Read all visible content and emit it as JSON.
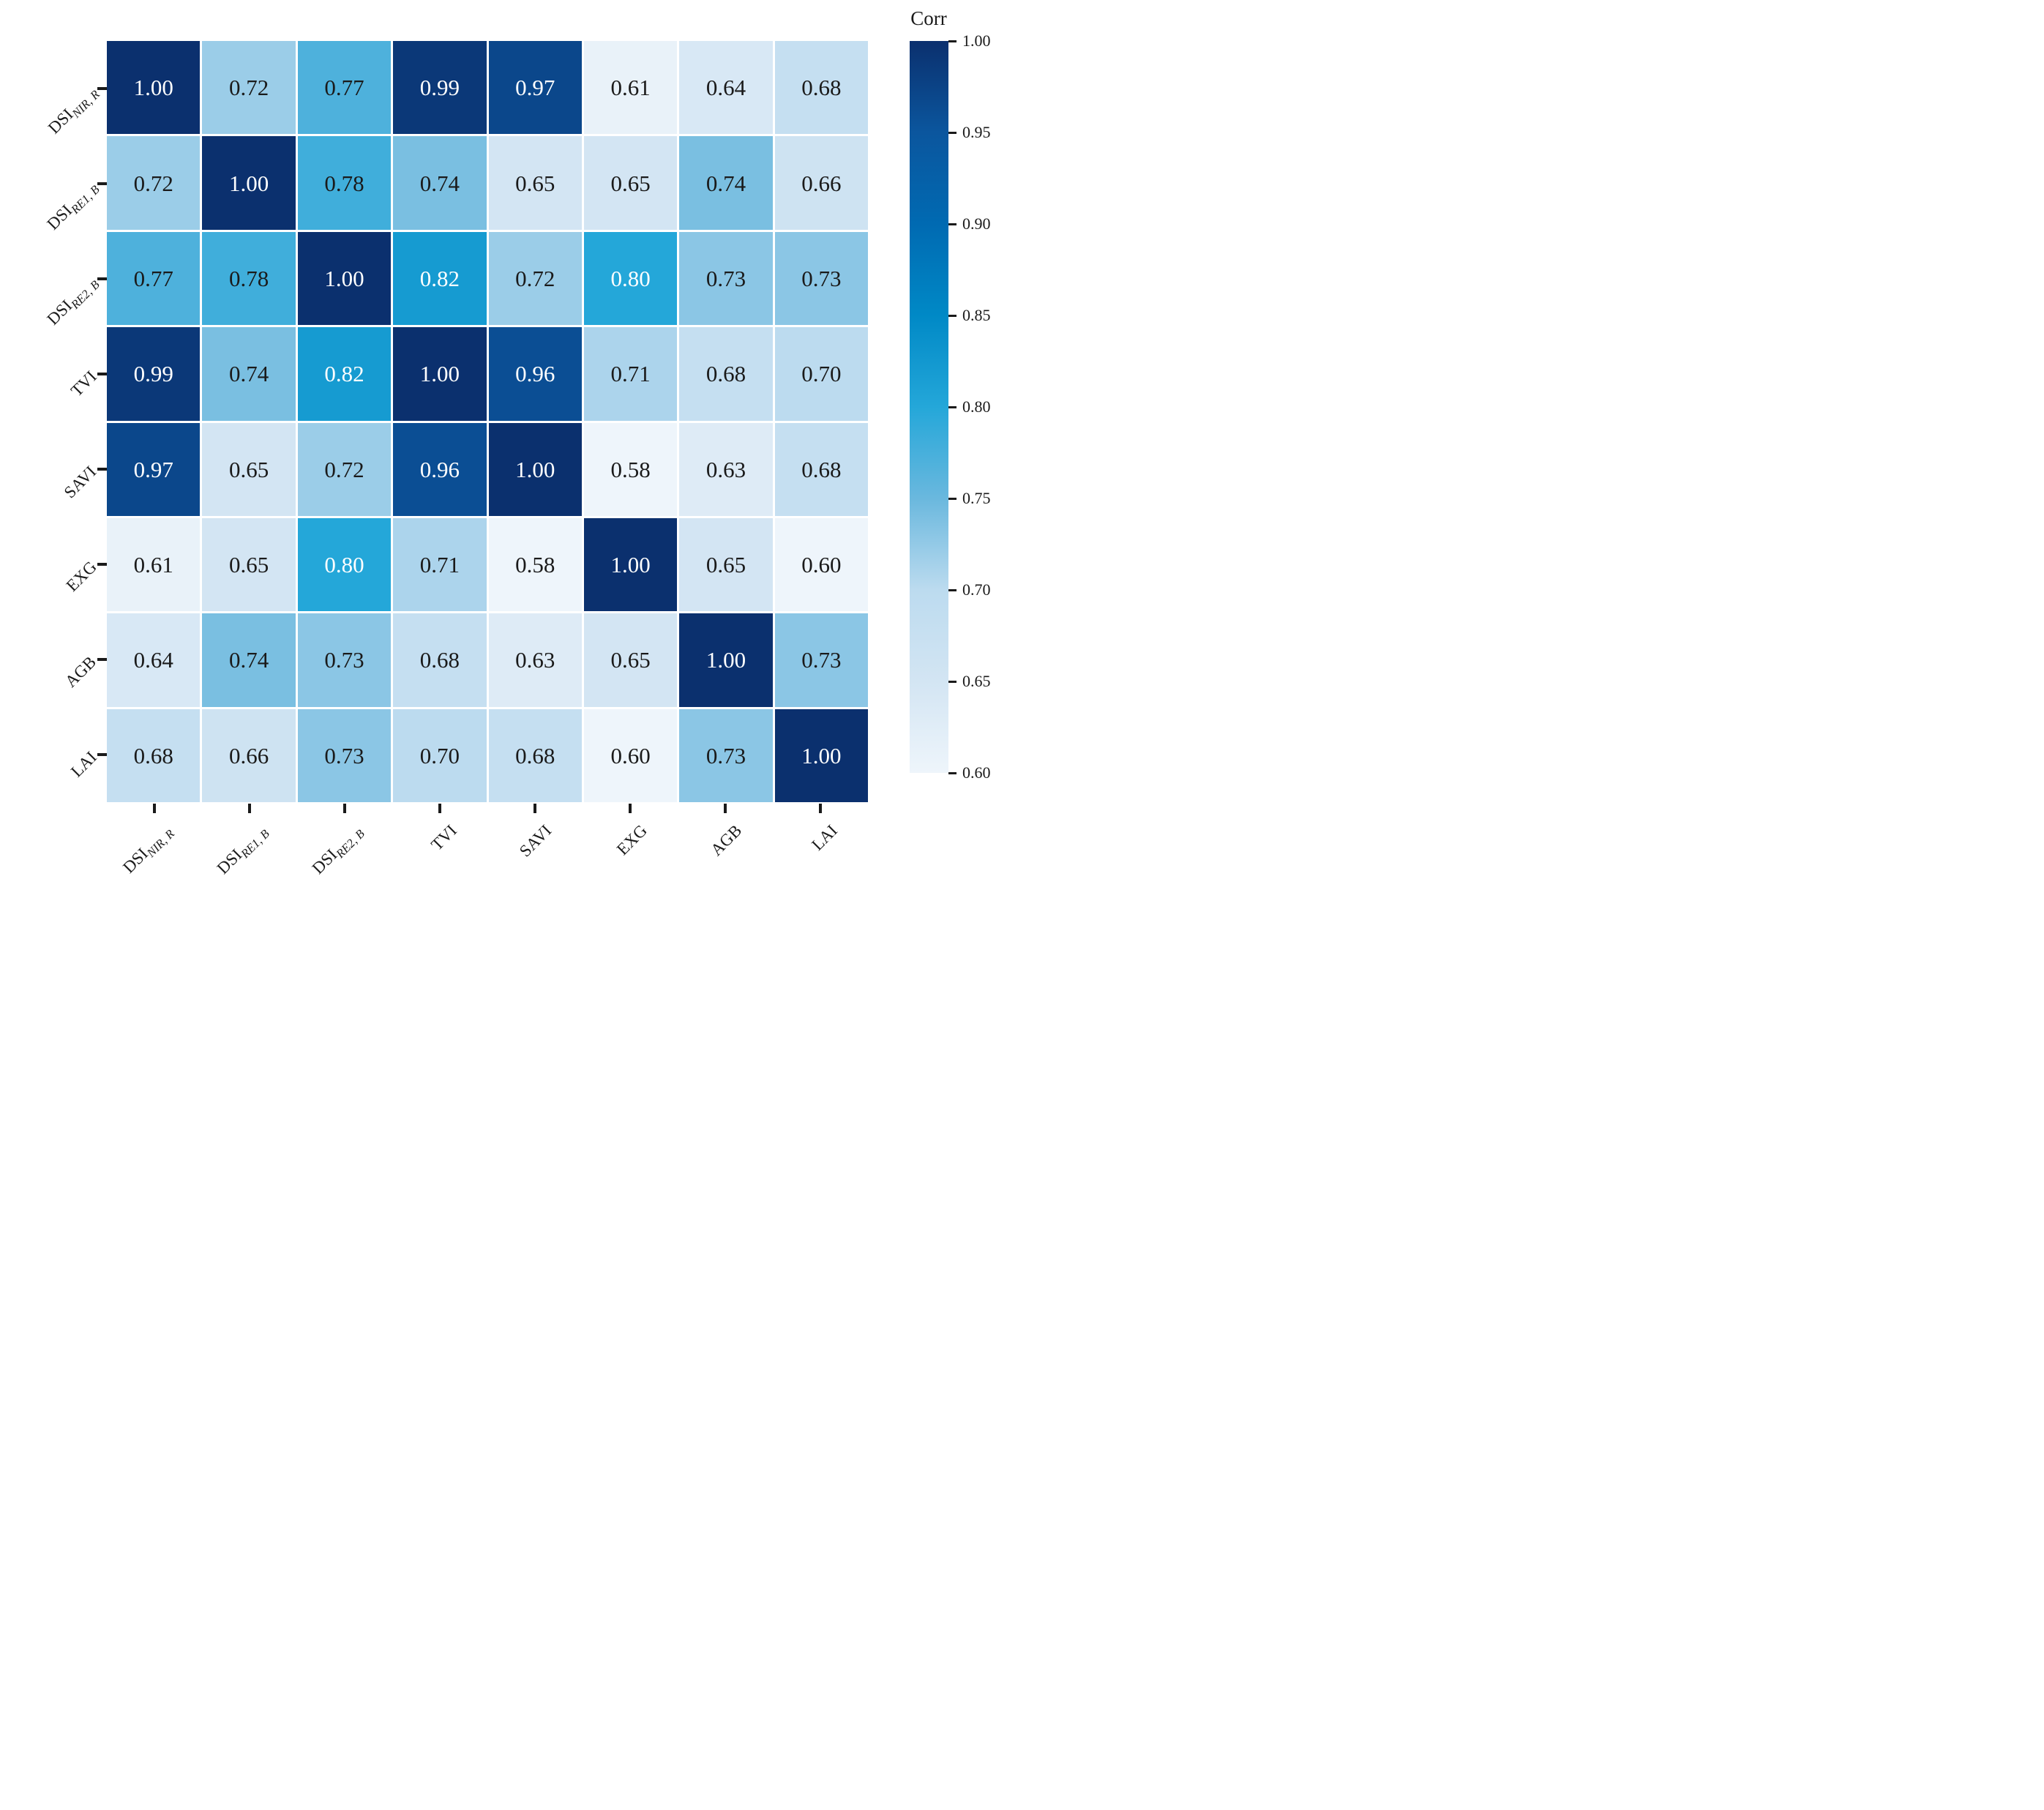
{
  "chart_data": {
    "type": "heatmap",
    "title": "",
    "variables": [
      {
        "base": "DSI",
        "sub": "NIR, R"
      },
      {
        "base": "DSI",
        "sub": "RE1, B"
      },
      {
        "base": "DSI",
        "sub": "RE2, B"
      },
      {
        "base": "TVI",
        "sub": ""
      },
      {
        "base": "SAVI",
        "sub": ""
      },
      {
        "base": "EXG",
        "sub": ""
      },
      {
        "base": "AGB",
        "sub": ""
      },
      {
        "base": "LAI",
        "sub": ""
      }
    ],
    "matrix": [
      [
        1.0,
        0.72,
        0.77,
        0.99,
        0.97,
        0.61,
        0.64,
        0.68
      ],
      [
        0.72,
        1.0,
        0.78,
        0.74,
        0.65,
        0.65,
        0.74,
        0.66
      ],
      [
        0.77,
        0.78,
        1.0,
        0.82,
        0.72,
        0.8,
        0.73,
        0.73
      ],
      [
        0.99,
        0.74,
        0.82,
        1.0,
        0.96,
        0.71,
        0.68,
        0.7
      ],
      [
        0.97,
        0.65,
        0.72,
        0.96,
        1.0,
        0.58,
        0.63,
        0.68
      ],
      [
        0.61,
        0.65,
        0.8,
        0.71,
        0.58,
        1.0,
        0.65,
        0.6
      ],
      [
        0.64,
        0.74,
        0.73,
        0.68,
        0.63,
        0.65,
        1.0,
        0.73
      ],
      [
        0.68,
        0.66,
        0.73,
        0.7,
        0.68,
        0.6,
        0.73,
        1.0
      ]
    ],
    "value_decimals": 2,
    "colorbar": {
      "title": "Corr",
      "vmin": 0.6,
      "vmax": 1.0,
      "position": "right",
      "ticks": [
        1.0,
        0.95,
        0.9,
        0.85,
        0.8,
        0.75,
        0.7,
        0.65,
        0.6
      ],
      "tick_labels": [
        "1.00",
        "0.95",
        "0.90",
        "0.85",
        "0.80",
        "0.75",
        "0.70",
        "0.65",
        "0.60"
      ]
    },
    "colormap": {
      "stops": [
        {
          "v": 0.6,
          "c": "#eef5fb"
        },
        {
          "v": 0.65,
          "c": "#d3e5f3"
        },
        {
          "v": 0.7,
          "c": "#bcdbef"
        },
        {
          "v": 0.75,
          "c": "#6ab8de"
        },
        {
          "v": 0.8,
          "c": "#24a7d9"
        },
        {
          "v": 0.85,
          "c": "#0089c6"
        },
        {
          "v": 0.9,
          "c": "#006ab2"
        },
        {
          "v": 0.95,
          "c": "#0b569e"
        },
        {
          "v": 1.0,
          "c": "#0b306e"
        }
      ]
    },
    "cell_text_dark": "#1a1a1a",
    "cell_text_light": "#ffffff",
    "light_text_threshold": 0.8,
    "tick_color": "#1a1a1a",
    "grid_on": true,
    "legend_position": "right-colorbar"
  }
}
